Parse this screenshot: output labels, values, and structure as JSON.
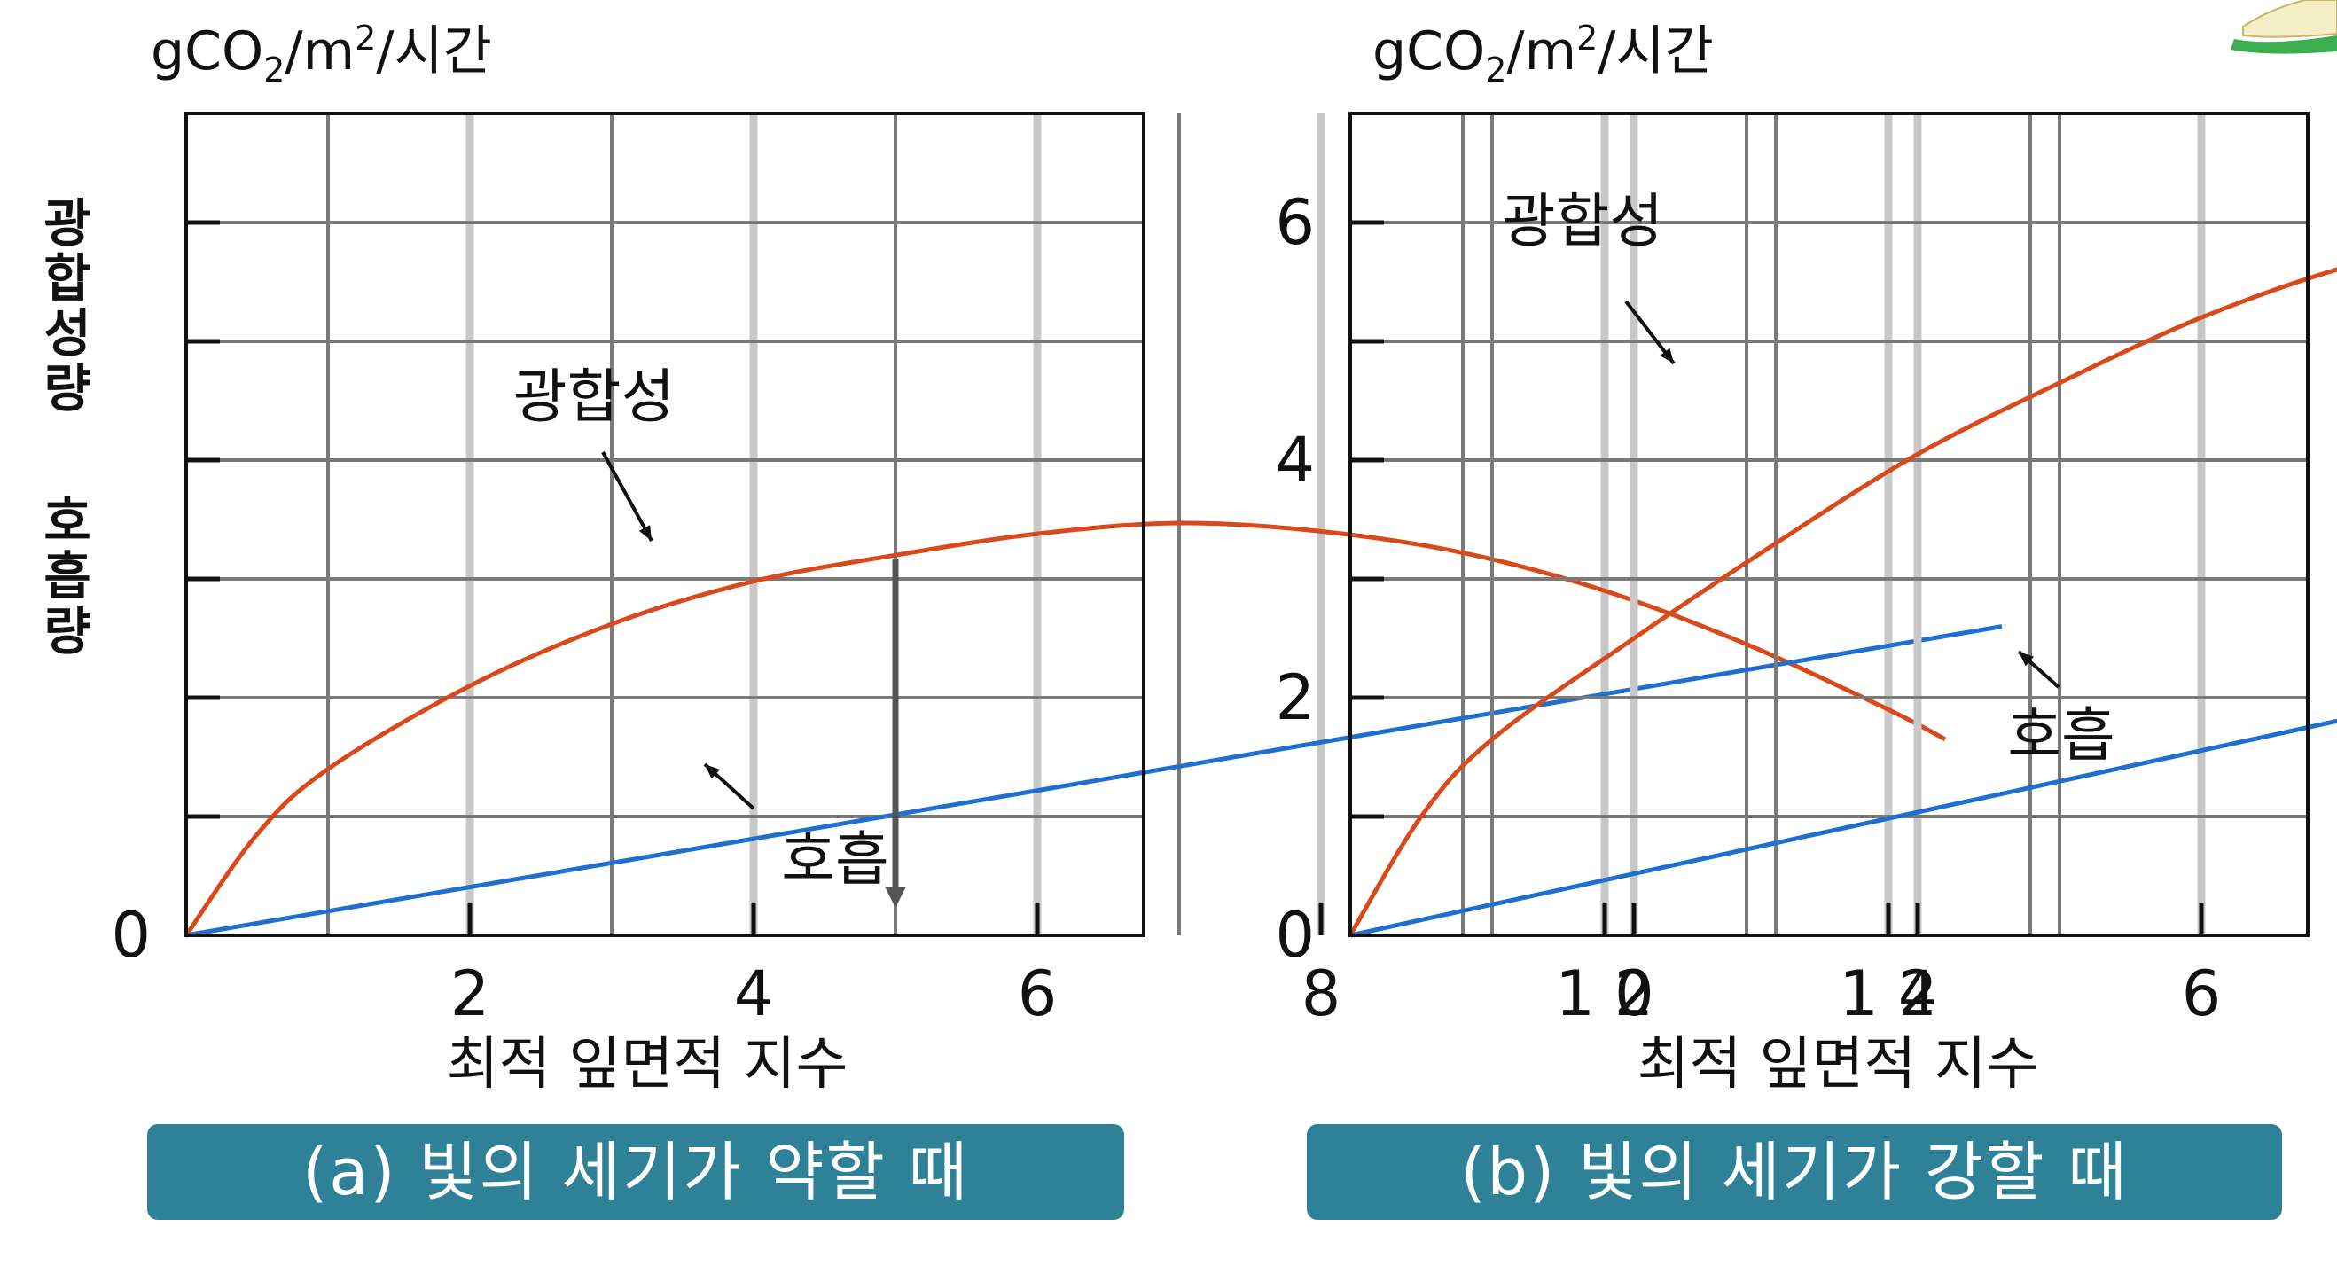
{
  "colors": {
    "photosynthesis": "#D84A1B",
    "respiration": "#1F6FD1",
    "caption_bg": "#2E8196",
    "grid_light": "#C8C8C8",
    "grid_dark": "#7A7A7A"
  },
  "y_axis_title": [
    "광",
    "합",
    "성",
    "량",
    "",
    "호",
    "흡",
    "량"
  ],
  "chart_data": [
    {
      "type": "line",
      "unit_label": "gCO₂/m²/시간",
      "xlabel": "최적 잎면적 지수",
      "x_ticks": [
        2,
        4,
        6,
        8,
        10,
        12
      ],
      "x_tick_labels": [
        "2",
        "4",
        "6",
        "8",
        "1 0",
        "1 2"
      ],
      "y_tick_labels": [
        "0"
      ],
      "xlim": [
        0,
        13.5
      ],
      "ylim": [
        0,
        7
      ],
      "series": [
        {
          "name": "광합성",
          "color": "#D84A1B",
          "x": [
            0,
            0.5,
            1,
            2,
            3,
            4,
            5,
            6,
            7,
            8,
            9,
            10,
            11,
            12,
            12.4
          ],
          "y": [
            0,
            0.85,
            1.4,
            2.1,
            2.62,
            2.98,
            3.2,
            3.38,
            3.47,
            3.4,
            3.22,
            2.9,
            2.45,
            1.9,
            1.65
          ]
        },
        {
          "name": "호흡",
          "color": "#1F6FD1",
          "x": [
            0,
            12.8
          ],
          "y": [
            0,
            2.6
          ]
        }
      ],
      "optimum_x": 5,
      "caption": "(a) 빛의  세기가  약할  때"
    },
    {
      "type": "line",
      "unit_label": "gCO₂/m²/시간",
      "xlabel": "최적 잎면적 지수",
      "x_ticks": [
        2,
        4,
        6,
        8,
        10,
        12
      ],
      "x_tick_labels": [
        "2",
        "4",
        "6",
        "8",
        "1 0",
        "1 2"
      ],
      "y_ticks": [
        0,
        2,
        4,
        6
      ],
      "y_tick_labels": [
        "0",
        "2",
        "4",
        "6"
      ],
      "xlim": [
        0,
        13.5
      ],
      "ylim": [
        0,
        7
      ],
      "series": [
        {
          "name": "광합성",
          "color": "#D84A1B",
          "x": [
            0,
            0.5,
            1,
            2,
            3,
            4,
            5,
            6,
            7,
            8,
            9,
            10,
            11,
            12,
            13,
            13.5
          ],
          "y": [
            0,
            1,
            1.65,
            2.5,
            3.3,
            4.05,
            4.65,
            5.2,
            5.62,
            5.9,
            6.08,
            6.12,
            6.05,
            5.93,
            5.75,
            5.65
          ]
        },
        {
          "name": "호흡",
          "color": "#1F6FD1",
          "x": [
            0,
            13.5
          ],
          "y": [
            0,
            3.5
          ]
        }
      ],
      "optimum_x": 8,
      "caption": "(b) 빛의  세기가  강할  때"
    }
  ]
}
